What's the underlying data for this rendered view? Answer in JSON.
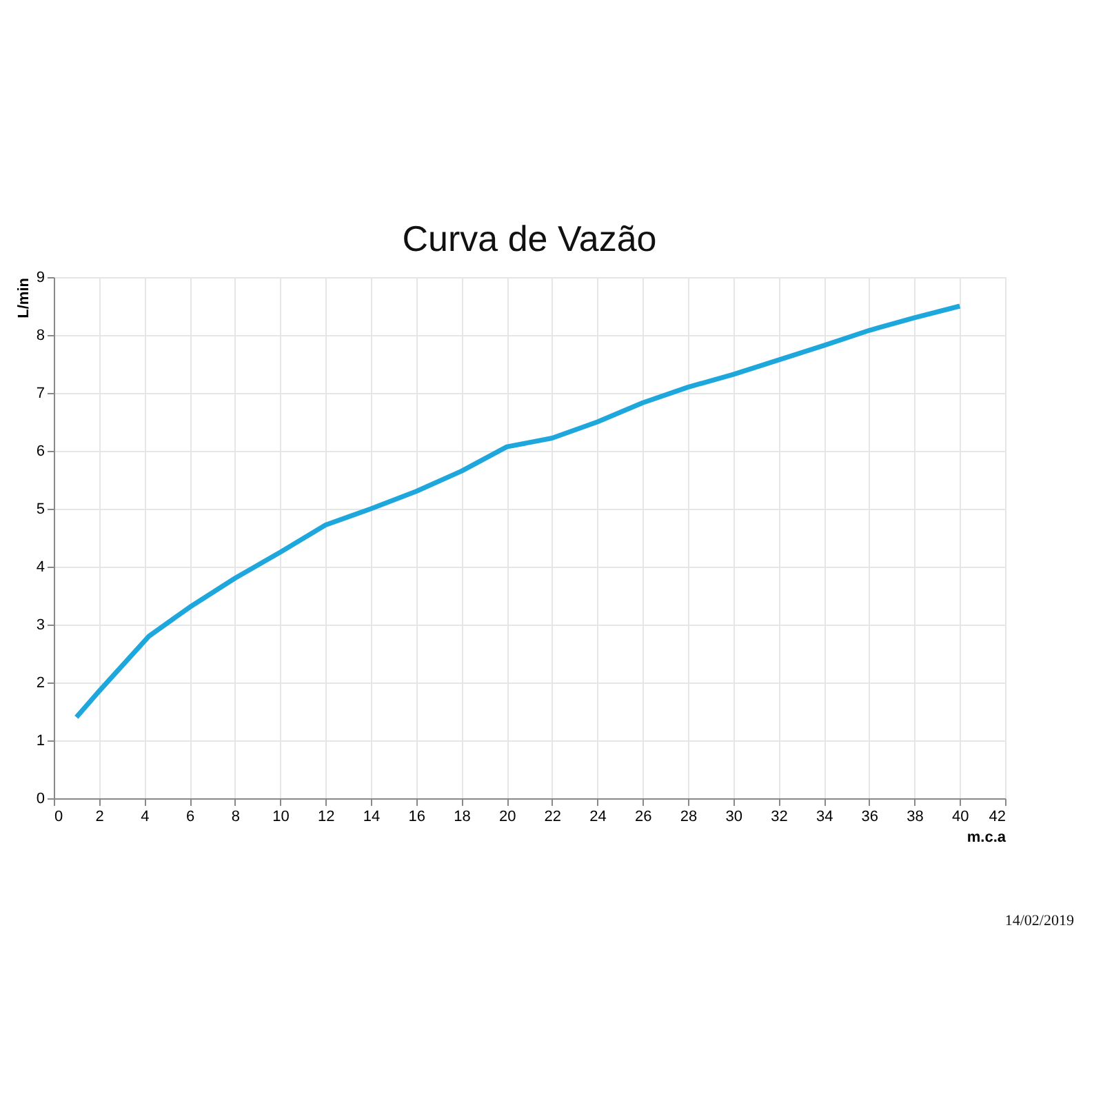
{
  "chart_data": {
    "type": "line",
    "title": "Curva de Vazão",
    "xlabel": "m.c.a",
    "ylabel": "L/min",
    "x": [
      1,
      2,
      4.2,
      6,
      8,
      10,
      12,
      14,
      16,
      18,
      20,
      22,
      24,
      26,
      28,
      30,
      32,
      34,
      36,
      38,
      40
    ],
    "series": [
      {
        "color": "#1ea7dc",
        "values": [
          1.4,
          1.85,
          2.8,
          3.3,
          3.8,
          4.25,
          4.72,
          5.0,
          5.3,
          5.65,
          6.07,
          6.22,
          6.5,
          6.83,
          7.1,
          7.32,
          7.57,
          7.82,
          8.08,
          8.3,
          8.5
        ]
      }
    ],
    "xlim": [
      0,
      42
    ],
    "xticks": [
      0,
      2,
      4,
      6,
      8,
      10,
      12,
      14,
      16,
      18,
      20,
      22,
      24,
      26,
      28,
      30,
      32,
      34,
      36,
      38,
      40,
      42
    ],
    "ylim": [
      0,
      9
    ],
    "yticks": [
      0,
      1,
      2,
      3,
      4,
      5,
      6,
      7,
      8,
      9
    ],
    "grid": true,
    "marker": "none",
    "line_style": "solid",
    "annotations": [
      "14/02/2019"
    ]
  }
}
